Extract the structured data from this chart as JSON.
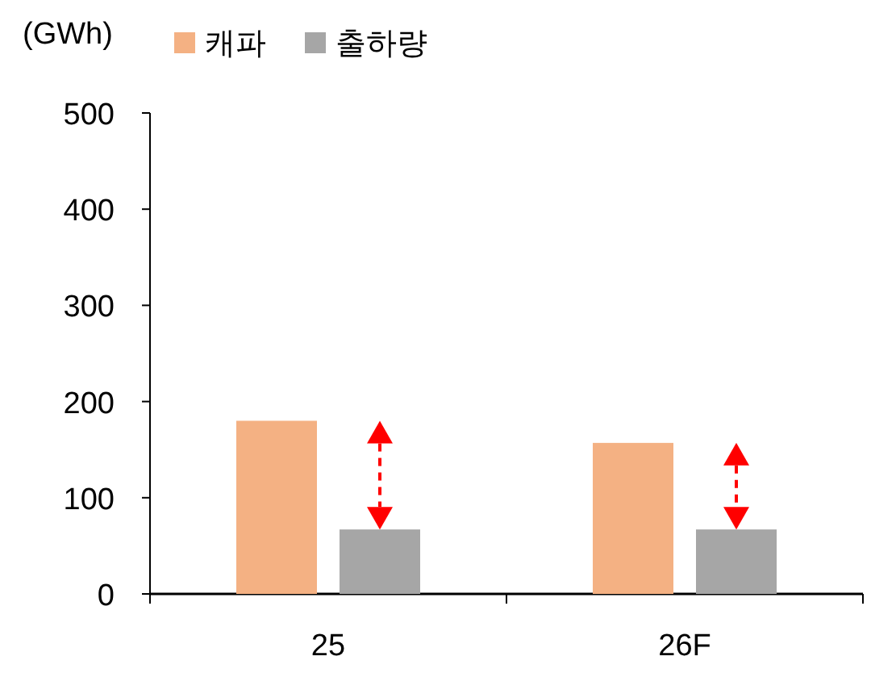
{
  "chart_data": {
    "type": "bar",
    "ylabel": "(GWh)",
    "categories": [
      "25",
      "26F"
    ],
    "series": [
      {
        "name": "캐파",
        "color": "#f4b183",
        "values": [
          180,
          157
        ]
      },
      {
        "name": "출하량",
        "color": "#a6a6a6",
        "values": [
          67,
          67
        ]
      }
    ],
    "ylim": [
      0,
      500
    ],
    "yticks": [
      0,
      100,
      200,
      300,
      400,
      500
    ],
    "grid": false,
    "legend": "top"
  }
}
